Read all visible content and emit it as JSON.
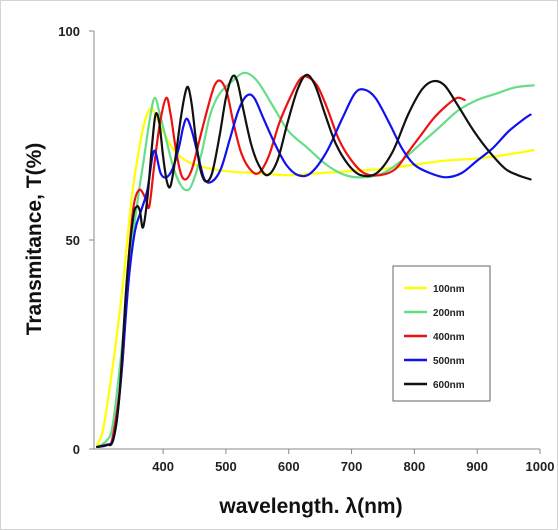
{
  "chart_data": {
    "type": "line",
    "title": "",
    "xlabel": "wavelength. λ(nm)",
    "ylabel": "Transmitance, T(%)",
    "xlim": [
      290,
      1000
    ],
    "ylim": [
      0,
      100
    ],
    "x_ticks": [
      {
        "value": 400,
        "label": "400"
      },
      {
        "value": 500,
        "label": "500"
      },
      {
        "value": 600,
        "label": "600"
      },
      {
        "value": 700,
        "label": "700"
      },
      {
        "value": 800,
        "label": "800"
      },
      {
        "value": 900,
        "label": "900"
      },
      {
        "value": 1000,
        "label": "1000"
      }
    ],
    "y_ticks": [
      {
        "value": 0,
        "label": "0"
      },
      {
        "value": 50,
        "label": "50"
      },
      {
        "value": 100,
        "label": "100"
      }
    ],
    "grid": false,
    "legend_position": "right-middle",
    "series": [
      {
        "name": "100nm",
        "color": "#ffff00",
        "points": [
          [
            295,
            1
          ],
          [
            305,
            5
          ],
          [
            320,
            20
          ],
          [
            335,
            38
          ],
          [
            350,
            60
          ],
          [
            362,
            72
          ],
          [
            372,
            79
          ],
          [
            380,
            81.5
          ],
          [
            388,
            80
          ],
          [
            400,
            76
          ],
          [
            420,
            71
          ],
          [
            450,
            68
          ],
          [
            500,
            66.5
          ],
          [
            550,
            66
          ],
          [
            600,
            65.5
          ],
          [
            650,
            66
          ],
          [
            700,
            66.5
          ],
          [
            750,
            67
          ],
          [
            800,
            68
          ],
          [
            850,
            69
          ],
          [
            900,
            69.5
          ],
          [
            950,
            70.5
          ],
          [
            990,
            71.5
          ]
        ]
      },
      {
        "name": "200nm",
        "color": "#66dd88",
        "points": [
          [
            295,
            0.5
          ],
          [
            310,
            2
          ],
          [
            320,
            6
          ],
          [
            335,
            25
          ],
          [
            350,
            48
          ],
          [
            360,
            60
          ],
          [
            370,
            70
          ],
          [
            380,
            80
          ],
          [
            387,
            84
          ],
          [
            395,
            80
          ],
          [
            405,
            74
          ],
          [
            415,
            68
          ],
          [
            425,
            64
          ],
          [
            435,
            62
          ],
          [
            445,
            63
          ],
          [
            460,
            70
          ],
          [
            475,
            80
          ],
          [
            490,
            85
          ],
          [
            510,
            88
          ],
          [
            530,
            90
          ],
          [
            550,
            88
          ],
          [
            575,
            82
          ],
          [
            600,
            76
          ],
          [
            630,
            72
          ],
          [
            660,
            68
          ],
          [
            690,
            65.5
          ],
          [
            720,
            65
          ],
          [
            750,
            66
          ],
          [
            780,
            69
          ],
          [
            810,
            73
          ],
          [
            840,
            77
          ],
          [
            870,
            81
          ],
          [
            900,
            83.5
          ],
          [
            930,
            85
          ],
          [
            960,
            86.5
          ],
          [
            990,
            87
          ]
        ]
      },
      {
        "name": "400nm",
        "color": "#ee1111",
        "points": [
          [
            295,
            0.5
          ],
          [
            310,
            1
          ],
          [
            320,
            3
          ],
          [
            335,
            20
          ],
          [
            345,
            45
          ],
          [
            353,
            58
          ],
          [
            362,
            62
          ],
          [
            372,
            60
          ],
          [
            378,
            58
          ],
          [
            386,
            68
          ],
          [
            395,
            78
          ],
          [
            405,
            84
          ],
          [
            412,
            80
          ],
          [
            420,
            72
          ],
          [
            428,
            66
          ],
          [
            436,
            64.5
          ],
          [
            446,
            67
          ],
          [
            458,
            74
          ],
          [
            470,
            81
          ],
          [
            482,
            87
          ],
          [
            492,
            88
          ],
          [
            502,
            85
          ],
          [
            512,
            78
          ],
          [
            524,
            71
          ],
          [
            538,
            67
          ],
          [
            552,
            66
          ],
          [
            568,
            70
          ],
          [
            585,
            78
          ],
          [
            602,
            84
          ],
          [
            618,
            88.5
          ],
          [
            630,
            89
          ],
          [
            645,
            87
          ],
          [
            660,
            82
          ],
          [
            680,
            74
          ],
          [
            700,
            69
          ],
          [
            720,
            66
          ],
          [
            745,
            65.5
          ],
          [
            770,
            67
          ],
          [
            790,
            71
          ],
          [
            810,
            75
          ],
          [
            830,
            79
          ],
          [
            850,
            82
          ],
          [
            868,
            84
          ],
          [
            880,
            83.5
          ]
        ]
      },
      {
        "name": "500nm",
        "color": "#1111ee",
        "points": [
          [
            295,
            0.5
          ],
          [
            312,
            1
          ],
          [
            322,
            3
          ],
          [
            332,
            15
          ],
          [
            345,
            40
          ],
          [
            355,
            52
          ],
          [
            365,
            57
          ],
          [
            375,
            62
          ],
          [
            383,
            70
          ],
          [
            388,
            71
          ],
          [
            396,
            66
          ],
          [
            405,
            65
          ],
          [
            415,
            67
          ],
          [
            425,
            72
          ],
          [
            432,
            77
          ],
          [
            438,
            79
          ],
          [
            446,
            76
          ],
          [
            456,
            70
          ],
          [
            466,
            64.5
          ],
          [
            478,
            64
          ],
          [
            492,
            67
          ],
          [
            506,
            74
          ],
          [
            520,
            81
          ],
          [
            533,
            84.5
          ],
          [
            545,
            84
          ],
          [
            560,
            79
          ],
          [
            578,
            73
          ],
          [
            596,
            68
          ],
          [
            615,
            65.5
          ],
          [
            635,
            66
          ],
          [
            660,
            71
          ],
          [
            685,
            79
          ],
          [
            705,
            85
          ],
          [
            720,
            86
          ],
          [
            738,
            84
          ],
          [
            760,
            78
          ],
          [
            780,
            72
          ],
          [
            800,
            68
          ],
          [
            825,
            66
          ],
          [
            850,
            65
          ],
          [
            875,
            66
          ],
          [
            900,
            69
          ],
          [
            925,
            72
          ],
          [
            950,
            76
          ],
          [
            975,
            79
          ],
          [
            985,
            80
          ]
        ]
      },
      {
        "name": "600nm",
        "color": "#111111",
        "points": [
          [
            295,
            0.5
          ],
          [
            310,
            1
          ],
          [
            320,
            2
          ],
          [
            330,
            12
          ],
          [
            342,
            40
          ],
          [
            352,
            55
          ],
          [
            358,
            58
          ],
          [
            363,
            57
          ],
          [
            368,
            53
          ],
          [
            375,
            60
          ],
          [
            382,
            72
          ],
          [
            388,
            80
          ],
          [
            394,
            78
          ],
          [
            400,
            70
          ],
          [
            406,
            64
          ],
          [
            412,
            63
          ],
          [
            420,
            70
          ],
          [
            428,
            79
          ],
          [
            435,
            85
          ],
          [
            440,
            86.5
          ],
          [
            446,
            82
          ],
          [
            453,
            73
          ],
          [
            460,
            66.5
          ],
          [
            468,
            64
          ],
          [
            478,
            66
          ],
          [
            490,
            75
          ],
          [
            500,
            84
          ],
          [
            510,
            89
          ],
          [
            518,
            88
          ],
          [
            528,
            81
          ],
          [
            540,
            73
          ],
          [
            552,
            68
          ],
          [
            566,
            65.5
          ],
          [
            582,
            69
          ],
          [
            598,
            78
          ],
          [
            614,
            86
          ],
          [
            628,
            89.5
          ],
          [
            642,
            87
          ],
          [
            658,
            80
          ],
          [
            675,
            73
          ],
          [
            695,
            68
          ],
          [
            715,
            65.5
          ],
          [
            740,
            66
          ],
          [
            765,
            71
          ],
          [
            790,
            80
          ],
          [
            812,
            86
          ],
          [
            830,
            88
          ],
          [
            848,
            87
          ],
          [
            870,
            82
          ],
          [
            895,
            76
          ],
          [
            920,
            71
          ],
          [
            945,
            67
          ],
          [
            965,
            65.5
          ],
          [
            985,
            64.5
          ]
        ]
      }
    ]
  }
}
